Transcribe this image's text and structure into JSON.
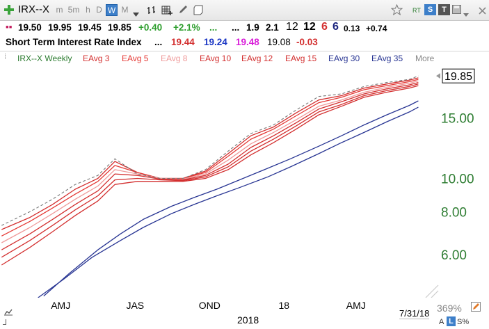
{
  "toolbar": {
    "add_icon": "plus-icon",
    "symbol": "IRX--X",
    "periods": [
      "m",
      "5m",
      "h",
      "D",
      "W",
      "M"
    ],
    "active_period": "W",
    "right_labels": [
      "RT",
      "S",
      "T"
    ]
  },
  "quote": {
    "open": "19.50",
    "high": "19.95",
    "low": "19.45",
    "close": "19.85",
    "change": "+0.40",
    "change_pct": "+2.1%",
    "dots1": "...",
    "dots2": "...",
    "v1": "1.9",
    "v2": "2.1",
    "v3": "12",
    "v4": "12",
    "v5": "6",
    "v6": "6",
    "v7": "0.13",
    "v8": "+0.74"
  },
  "header": {
    "name": "Short Term Interest Rate Index",
    "dots": "...",
    "val_red": "19.44",
    "val_blue": "19.24",
    "val_magenta": "19.48",
    "val_plain": "19.08",
    "val_change": "-0.03"
  },
  "legend": {
    "items": [
      "IRX--X Weekly",
      "EAvg 3",
      "EAvg 5",
      "EAvg 8",
      "EAvg 10",
      "EAvg 12",
      "EAvg 15",
      "EAvg 30",
      "EAvg 35",
      "More"
    ],
    "colors": [
      "#2e7d32",
      "#d32f2f",
      "#e53935",
      "#ef9a9a",
      "#d32f2f",
      "#d32f2f",
      "#d32f2f",
      "#283593",
      "#283593",
      "#888888"
    ]
  },
  "axes": {
    "x_ticks": [
      "AMJ",
      "JAS",
      "OND",
      "18",
      "AMJ"
    ],
    "year_label": "2018",
    "date_label": "7/31/18",
    "zoom": "369%",
    "y_ticks": [
      "15.00",
      "10.00",
      "8.00",
      "6.00"
    ],
    "current_price": "19.85",
    "scale_buttons": [
      "A",
      "L",
      "S%"
    ]
  },
  "chart_data": {
    "type": "line",
    "title": "Short Term Interest Rate Index",
    "y_scale": "log",
    "ylim": [
      4.5,
      21.5
    ],
    "x_range": [
      "2017-03-01",
      "2018-08-10"
    ],
    "series": [
      {
        "name": "IRX--X Weekly",
        "color": "#777777",
        "dashed": true,
        "points": [
          [
            "2017-03-03",
            7.3
          ],
          [
            "2017-04-07",
            8.0
          ],
          [
            "2017-05-05",
            8.7
          ],
          [
            "2017-06-02",
            9.6
          ],
          [
            "2017-06-30",
            10.2
          ],
          [
            "2017-07-21",
            11.4
          ],
          [
            "2017-08-18",
            10.3
          ],
          [
            "2017-09-15",
            10.0
          ],
          [
            "2017-10-13",
            10.0
          ],
          [
            "2017-11-10",
            10.6
          ],
          [
            "2017-12-08",
            12.0
          ],
          [
            "2018-01-05",
            13.5
          ],
          [
            "2018-02-02",
            14.3
          ],
          [
            "2018-03-02",
            15.8
          ],
          [
            "2018-03-30",
            17.3
          ],
          [
            "2018-04-27",
            17.6
          ],
          [
            "2018-05-25",
            18.5
          ],
          [
            "2018-06-22",
            19.0
          ],
          [
            "2018-07-20",
            19.4
          ],
          [
            "2018-07-31",
            19.85
          ]
        ]
      },
      {
        "name": "EAvg 3",
        "color": "#d32f2f",
        "points": [
          [
            "2017-03-03",
            7.1
          ],
          [
            "2017-04-07",
            7.7
          ],
          [
            "2017-05-05",
            8.4
          ],
          [
            "2017-06-02",
            9.3
          ],
          [
            "2017-06-30",
            10.0
          ],
          [
            "2017-07-21",
            11.2
          ],
          [
            "2017-08-18",
            10.4
          ],
          [
            "2017-09-15",
            10.0
          ],
          [
            "2017-10-13",
            10.0
          ],
          [
            "2017-11-10",
            10.5
          ],
          [
            "2017-12-08",
            11.8
          ],
          [
            "2018-01-05",
            13.3
          ],
          [
            "2018-02-02",
            14.1
          ],
          [
            "2018-03-02",
            15.5
          ],
          [
            "2018-03-30",
            16.9
          ],
          [
            "2018-04-27",
            17.4
          ],
          [
            "2018-05-25",
            18.3
          ],
          [
            "2018-06-22",
            18.8
          ],
          [
            "2018-07-20",
            19.3
          ],
          [
            "2018-07-31",
            19.6
          ]
        ]
      },
      {
        "name": "EAvg 5",
        "color": "#e53935",
        "points": [
          [
            "2017-03-03",
            6.8
          ],
          [
            "2017-04-07",
            7.5
          ],
          [
            "2017-05-05",
            8.2
          ],
          [
            "2017-06-02",
            9.0
          ],
          [
            "2017-06-30",
            9.8
          ],
          [
            "2017-07-21",
            10.9
          ],
          [
            "2017-08-18",
            10.4
          ],
          [
            "2017-09-15",
            10.0
          ],
          [
            "2017-10-13",
            10.0
          ],
          [
            "2017-11-10",
            10.4
          ],
          [
            "2017-12-08",
            11.6
          ],
          [
            "2018-01-05",
            13.0
          ],
          [
            "2018-02-02",
            13.9
          ],
          [
            "2018-03-02",
            15.2
          ],
          [
            "2018-03-30",
            16.6
          ],
          [
            "2018-04-27",
            17.2
          ],
          [
            "2018-05-25",
            18.1
          ],
          [
            "2018-06-22",
            18.6
          ],
          [
            "2018-07-20",
            19.1
          ],
          [
            "2018-07-31",
            19.4
          ]
        ]
      },
      {
        "name": "EAvg 8",
        "color": "#ef9a9a",
        "points": [
          [
            "2017-03-03",
            6.5
          ],
          [
            "2017-04-07",
            7.2
          ],
          [
            "2017-05-05",
            7.9
          ],
          [
            "2017-06-02",
            8.7
          ],
          [
            "2017-06-30",
            9.5
          ],
          [
            "2017-07-21",
            10.6
          ],
          [
            "2017-08-18",
            10.3
          ],
          [
            "2017-09-15",
            10.0
          ],
          [
            "2017-10-13",
            9.95
          ],
          [
            "2017-11-10",
            10.3
          ],
          [
            "2017-12-08",
            11.3
          ],
          [
            "2018-01-05",
            12.6
          ],
          [
            "2018-02-02",
            13.6
          ],
          [
            "2018-03-02",
            14.8
          ],
          [
            "2018-03-30",
            16.2
          ],
          [
            "2018-04-27",
            16.9
          ],
          [
            "2018-05-25",
            17.8
          ],
          [
            "2018-06-22",
            18.4
          ],
          [
            "2018-07-20",
            18.9
          ],
          [
            "2018-07-31",
            19.2
          ]
        ]
      },
      {
        "name": "EAvg 10",
        "color": "#d32f2f",
        "points": [
          [
            "2017-03-03",
            6.2
          ],
          [
            "2017-04-07",
            6.9
          ],
          [
            "2017-05-05",
            7.6
          ],
          [
            "2017-06-02",
            8.4
          ],
          [
            "2017-06-30",
            9.2
          ],
          [
            "2017-07-21",
            10.3
          ],
          [
            "2017-08-18",
            10.2
          ],
          [
            "2017-09-15",
            9.95
          ],
          [
            "2017-10-13",
            9.9
          ],
          [
            "2017-11-10",
            10.2
          ],
          [
            "2017-12-08",
            11.0
          ],
          [
            "2018-01-05",
            12.3
          ],
          [
            "2018-02-02",
            13.3
          ],
          [
            "2018-03-02",
            14.5
          ],
          [
            "2018-03-30",
            15.9
          ],
          [
            "2018-04-27",
            16.7
          ],
          [
            "2018-05-25",
            17.6
          ],
          [
            "2018-06-22",
            18.2
          ],
          [
            "2018-07-20",
            18.7
          ],
          [
            "2018-07-31",
            19.0
          ]
        ]
      },
      {
        "name": "EAvg 12",
        "color": "#d32f2f",
        "points": [
          [
            "2017-03-03",
            5.9
          ],
          [
            "2017-04-07",
            6.6
          ],
          [
            "2017-05-05",
            7.3
          ],
          [
            "2017-06-02",
            8.1
          ],
          [
            "2017-06-30",
            8.9
          ],
          [
            "2017-07-21",
            9.9
          ],
          [
            "2017-08-18",
            10.0
          ],
          [
            "2017-09-15",
            9.9
          ],
          [
            "2017-10-13",
            9.85
          ],
          [
            "2017-11-10",
            10.1
          ],
          [
            "2017-12-08",
            10.8
          ],
          [
            "2018-01-05",
            12.0
          ],
          [
            "2018-02-02",
            13.0
          ],
          [
            "2018-03-02",
            14.2
          ],
          [
            "2018-03-30",
            15.6
          ],
          [
            "2018-04-27",
            16.4
          ],
          [
            "2018-05-25",
            17.4
          ],
          [
            "2018-06-22",
            18.0
          ],
          [
            "2018-07-20",
            18.5
          ],
          [
            "2018-07-31",
            18.8
          ]
        ]
      },
      {
        "name": "EAvg 15",
        "color": "#d32f2f",
        "points": [
          [
            "2017-03-03",
            5.6
          ],
          [
            "2017-04-07",
            6.3
          ],
          [
            "2017-05-05",
            7.0
          ],
          [
            "2017-06-02",
            7.8
          ],
          [
            "2017-06-30",
            8.6
          ],
          [
            "2017-07-21",
            9.6
          ],
          [
            "2017-08-18",
            9.8
          ],
          [
            "2017-09-15",
            9.8
          ],
          [
            "2017-10-13",
            9.8
          ],
          [
            "2017-11-10",
            10.0
          ],
          [
            "2017-12-08",
            10.6
          ],
          [
            "2018-01-05",
            11.7
          ],
          [
            "2018-02-02",
            12.7
          ],
          [
            "2018-03-02",
            13.9
          ],
          [
            "2018-03-30",
            15.3
          ],
          [
            "2018-04-27",
            16.2
          ],
          [
            "2018-05-25",
            17.2
          ],
          [
            "2018-06-22",
            17.8
          ],
          [
            "2018-07-20",
            18.3
          ],
          [
            "2018-07-31",
            18.6
          ]
        ]
      },
      {
        "name": "EAvg 30",
        "color": "#283593",
        "points": [
          [
            "2017-04-24",
            4.55
          ],
          [
            "2017-05-26",
            5.3
          ],
          [
            "2017-06-30",
            6.2
          ],
          [
            "2017-07-28",
            6.9
          ],
          [
            "2017-08-25",
            7.6
          ],
          [
            "2017-09-29",
            8.3
          ],
          [
            "2017-10-27",
            8.8
          ],
          [
            "2017-11-24",
            9.3
          ],
          [
            "2017-12-22",
            9.9
          ],
          [
            "2018-01-26",
            10.7
          ],
          [
            "2018-02-23",
            11.4
          ],
          [
            "2018-03-30",
            12.4
          ],
          [
            "2018-04-27",
            13.3
          ],
          [
            "2018-05-25",
            14.3
          ],
          [
            "2018-06-22",
            15.3
          ],
          [
            "2018-07-20",
            16.3
          ],
          [
            "2018-07-31",
            16.8
          ]
        ]
      },
      {
        "name": "EAvg 35",
        "color": "#283593",
        "points": [
          [
            "2017-04-17",
            4.5
          ],
          [
            "2017-05-19",
            5.1
          ],
          [
            "2017-06-23",
            5.9
          ],
          [
            "2017-07-28",
            6.6
          ],
          [
            "2017-08-25",
            7.2
          ],
          [
            "2017-09-29",
            7.9
          ],
          [
            "2017-10-27",
            8.4
          ],
          [
            "2017-11-24",
            8.9
          ],
          [
            "2017-12-22",
            9.4
          ],
          [
            "2018-01-26",
            10.1
          ],
          [
            "2018-02-23",
            10.8
          ],
          [
            "2018-03-30",
            11.8
          ],
          [
            "2018-04-27",
            12.7
          ],
          [
            "2018-05-25",
            13.6
          ],
          [
            "2018-06-22",
            14.6
          ],
          [
            "2018-07-20",
            15.6
          ],
          [
            "2018-07-31",
            16.1
          ]
        ]
      }
    ]
  }
}
